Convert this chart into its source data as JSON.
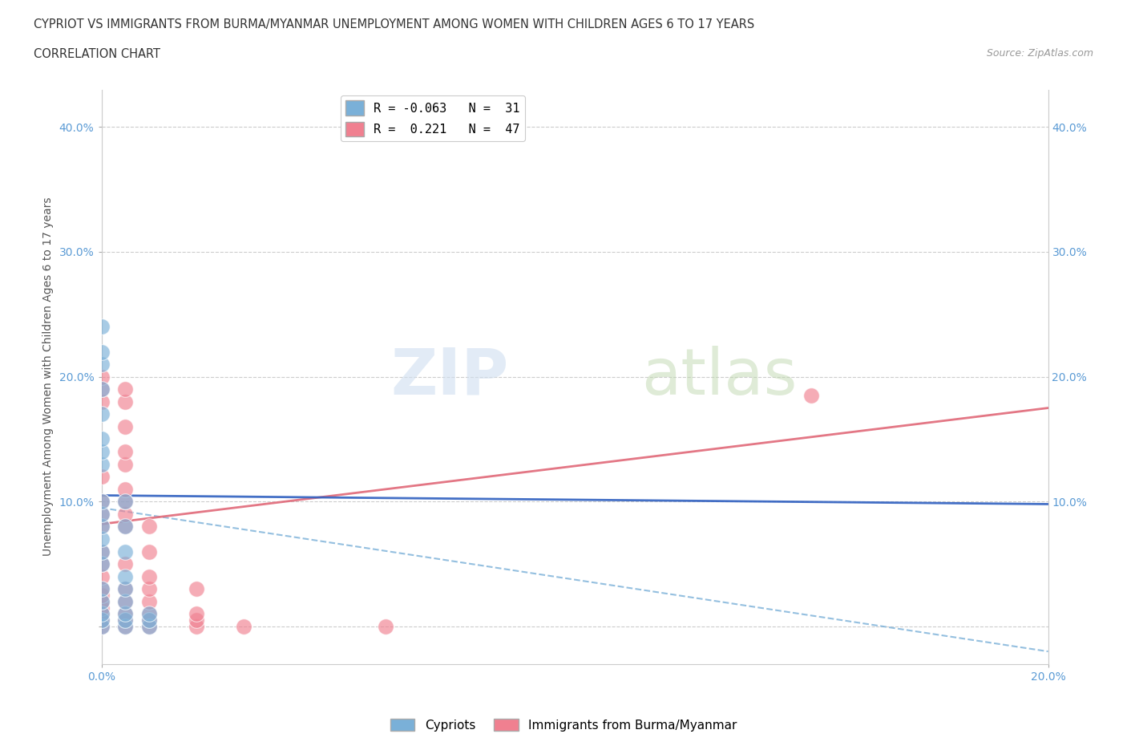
{
  "title_line1": "CYPRIOT VS IMMIGRANTS FROM BURMA/MYANMAR UNEMPLOYMENT AMONG WOMEN WITH CHILDREN AGES 6 TO 17 YEARS",
  "title_line2": "CORRELATION CHART",
  "source_text": "Source: ZipAtlas.com",
  "ylabel": "Unemployment Among Women with Children Ages 6 to 17 years",
  "xlim": [
    0.0,
    0.2
  ],
  "ylim": [
    -0.03,
    0.43
  ],
  "y_ticks": [
    0.0,
    0.1,
    0.2,
    0.3,
    0.4
  ],
  "y_tick_labels": [
    "",
    "10.0%",
    "20.0%",
    "30.0%",
    "40.0%"
  ],
  "x_ticks": [
    0.0,
    0.2
  ],
  "x_tick_labels": [
    "0.0%",
    "20.0%"
  ],
  "watermark_zip": "ZIP",
  "watermark_atlas": "atlas",
  "cypriot_color": "#7ab0d8",
  "myanmar_color": "#f08090",
  "background_color": "#ffffff",
  "grid_color": "#cccccc",
  "axis_label_color": "#5b9bd5",
  "cypriot_points": [
    [
      0.0,
      0.0
    ],
    [
      0.0,
      0.005
    ],
    [
      0.0,
      0.01
    ],
    [
      0.0,
      0.02
    ],
    [
      0.0,
      0.03
    ],
    [
      0.0,
      0.05
    ],
    [
      0.0,
      0.06
    ],
    [
      0.0,
      0.07
    ],
    [
      0.0,
      0.08
    ],
    [
      0.0,
      0.09
    ],
    [
      0.0,
      0.1
    ],
    [
      0.0,
      0.13
    ],
    [
      0.0,
      0.14
    ],
    [
      0.0,
      0.15
    ],
    [
      0.0,
      0.17
    ],
    [
      0.0,
      0.19
    ],
    [
      0.0,
      0.21
    ],
    [
      0.0,
      0.22
    ],
    [
      0.0,
      0.24
    ],
    [
      0.005,
      0.0
    ],
    [
      0.005,
      0.005
    ],
    [
      0.005,
      0.01
    ],
    [
      0.005,
      0.02
    ],
    [
      0.005,
      0.03
    ],
    [
      0.005,
      0.04
    ],
    [
      0.005,
      0.06
    ],
    [
      0.005,
      0.08
    ],
    [
      0.005,
      0.1
    ],
    [
      0.01,
      0.0
    ],
    [
      0.01,
      0.005
    ],
    [
      0.01,
      0.01
    ]
  ],
  "myanmar_points": [
    [
      0.0,
      0.0
    ],
    [
      0.0,
      0.005
    ],
    [
      0.0,
      0.01
    ],
    [
      0.0,
      0.015
    ],
    [
      0.0,
      0.02
    ],
    [
      0.0,
      0.025
    ],
    [
      0.0,
      0.03
    ],
    [
      0.0,
      0.04
    ],
    [
      0.0,
      0.05
    ],
    [
      0.0,
      0.06
    ],
    [
      0.0,
      0.08
    ],
    [
      0.0,
      0.09
    ],
    [
      0.0,
      0.1
    ],
    [
      0.0,
      0.12
    ],
    [
      0.0,
      0.18
    ],
    [
      0.0,
      0.19
    ],
    [
      0.0,
      0.2
    ],
    [
      0.005,
      0.0
    ],
    [
      0.005,
      0.005
    ],
    [
      0.005,
      0.01
    ],
    [
      0.005,
      0.02
    ],
    [
      0.005,
      0.03
    ],
    [
      0.005,
      0.05
    ],
    [
      0.005,
      0.08
    ],
    [
      0.005,
      0.09
    ],
    [
      0.005,
      0.1
    ],
    [
      0.005,
      0.11
    ],
    [
      0.005,
      0.13
    ],
    [
      0.005,
      0.14
    ],
    [
      0.005,
      0.16
    ],
    [
      0.005,
      0.18
    ],
    [
      0.005,
      0.19
    ],
    [
      0.01,
      0.0
    ],
    [
      0.01,
      0.005
    ],
    [
      0.01,
      0.01
    ],
    [
      0.01,
      0.02
    ],
    [
      0.01,
      0.03
    ],
    [
      0.01,
      0.04
    ],
    [
      0.01,
      0.06
    ],
    [
      0.01,
      0.08
    ],
    [
      0.02,
      0.0
    ],
    [
      0.02,
      0.005
    ],
    [
      0.02,
      0.01
    ],
    [
      0.02,
      0.03
    ],
    [
      0.03,
      0.0
    ],
    [
      0.06,
      0.0
    ],
    [
      0.15,
      0.185
    ]
  ],
  "cypriot_line": {
    "x0": 0.0,
    "y0": 0.105,
    "x1": 0.2,
    "y1": 0.098
  },
  "myanmar_line": {
    "x0": 0.0,
    "y0": 0.082,
    "x1": 0.2,
    "y1": 0.175
  },
  "cypriot_dashed_line": {
    "x0": 0.0,
    "y0": 0.095,
    "x1": 0.2,
    "y1": -0.02
  },
  "legend_label_cypriot": "R = -0.063   N =  31",
  "legend_label_myanmar": "R =  0.221   N =  47",
  "bottom_legend_cypriot": "Cypriots",
  "bottom_legend_myanmar": "Immigrants from Burma/Myanmar"
}
